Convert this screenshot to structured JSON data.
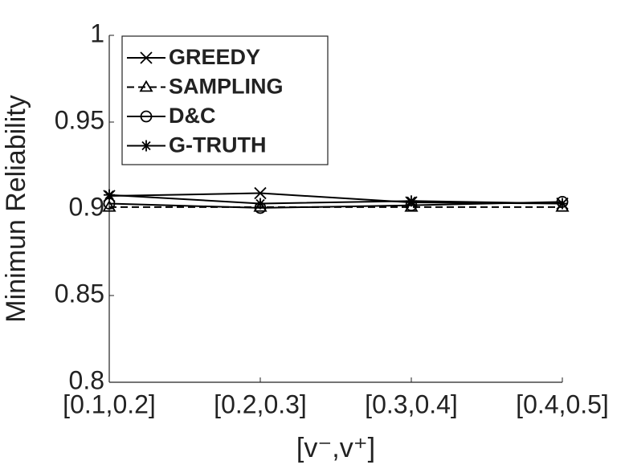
{
  "chart_data": {
    "type": "line",
    "y_label": "Minimun Reliability",
    "x_label": "[v⁻,v⁺]",
    "categories": [
      "[0.1,0.2]",
      "[0.2,0.3]",
      "[0.3,0.4]",
      "[0.4,0.5]"
    ],
    "ylim": [
      0.8,
      1
    ],
    "yticks": [
      0.8,
      0.85,
      0.9,
      0.95,
      1
    ],
    "legend": "upper left",
    "series": [
      {
        "name": "GREEDY",
        "color": "#000000",
        "marker": "x",
        "linestyle": "solid",
        "values": [
          0.9074,
          0.909,
          0.9037,
          0.903
        ]
      },
      {
        "name": "SAMPLING",
        "color": "#000000",
        "marker": "triangle",
        "linestyle": "dashed",
        "values": [
          0.901,
          0.901,
          0.901,
          0.901
        ]
      },
      {
        "name": "D&C",
        "color": "#000000",
        "marker": "circle",
        "linestyle": "solid",
        "values": [
          0.903,
          0.9005,
          0.902,
          0.904
        ]
      },
      {
        "name": "G-TRUTH",
        "color": "#000000",
        "marker": "star",
        "linestyle": "solid",
        "values": [
          0.908,
          0.903,
          0.9045,
          0.903
        ]
      }
    ]
  }
}
